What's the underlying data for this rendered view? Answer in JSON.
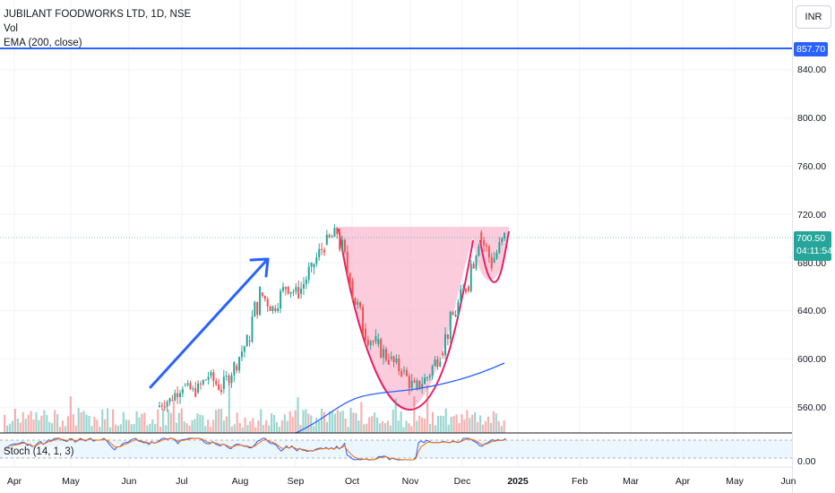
{
  "legend": {
    "symbol": "JUBILANT FOODWORKS LTD, 1D, NSE",
    "volume": "Vol",
    "ema": "EMA (200, close)"
  },
  "currency": "INR",
  "price_axis": {
    "ticks": [
      "840.00",
      "800.00",
      "760.00",
      "720.00",
      "680.00",
      "640.00",
      "600.00",
      "560.00"
    ],
    "ema_tag": "857.70",
    "last_price_tag": "700.50",
    "countdown_tag": "04:11:54"
  },
  "time_axis": {
    "labels": [
      "Apr",
      "May",
      "Jun",
      "Jul",
      "Aug",
      "Sep",
      "Oct",
      "Nov",
      "Dec",
      "2025",
      "Feb",
      "Mar",
      "Apr",
      "May",
      "Jun"
    ]
  },
  "stoch": {
    "label": "Stoch (14, 1, 3)",
    "zero_tick": "0.00"
  },
  "colors": {
    "up": "#26a69a",
    "down": "#ef5350",
    "ema": "#2962ff",
    "arrow": "#2962ff",
    "cup_fill": "#f8bbd0",
    "cup_line": "#e91e63",
    "ema_tag": "#2962ff",
    "last_price_tag": "#26a69a"
  },
  "chart_data": {
    "type": "candlestick",
    "ylim": [
      545,
      865
    ],
    "ema_200_last": 857.7,
    "last_close": 700.5,
    "candles": [
      {
        "date": "2024-06-25",
        "o": 560,
        "h": 572,
        "l": 556,
        "c": 566
      },
      {
        "date": "2024-07-02",
        "o": 566,
        "h": 582,
        "l": 560,
        "c": 578
      },
      {
        "date": "2024-07-09",
        "o": 578,
        "h": 585,
        "l": 568,
        "c": 572
      },
      {
        "date": "2024-07-16",
        "o": 572,
        "h": 590,
        "l": 566,
        "c": 586
      },
      {
        "date": "2024-07-23",
        "o": 586,
        "h": 592,
        "l": 570,
        "c": 575
      },
      {
        "date": "2024-07-30",
        "o": 575,
        "h": 598,
        "l": 571,
        "c": 594
      },
      {
        "date": "2024-08-06",
        "o": 594,
        "h": 620,
        "l": 588,
        "c": 615
      },
      {
        "date": "2024-08-13",
        "o": 615,
        "h": 660,
        "l": 610,
        "c": 655
      },
      {
        "date": "2024-08-20",
        "o": 655,
        "h": 662,
        "l": 635,
        "c": 642
      },
      {
        "date": "2024-08-27",
        "o": 642,
        "h": 668,
        "l": 638,
        "c": 660
      },
      {
        "date": "2024-09-03",
        "o": 660,
        "h": 672,
        "l": 650,
        "c": 654
      },
      {
        "date": "2024-09-10",
        "o": 654,
        "h": 680,
        "l": 645,
        "c": 676
      },
      {
        "date": "2024-09-17",
        "o": 676,
        "h": 700,
        "l": 670,
        "c": 695
      },
      {
        "date": "2024-09-24",
        "o": 695,
        "h": 715,
        "l": 690,
        "c": 705
      },
      {
        "date": "2024-10-01",
        "o": 705,
        "h": 708,
        "l": 660,
        "c": 665
      },
      {
        "date": "2024-10-08",
        "o": 665,
        "h": 670,
        "l": 620,
        "c": 625
      },
      {
        "date": "2024-10-15",
        "o": 625,
        "h": 640,
        "l": 605,
        "c": 612
      },
      {
        "date": "2024-10-22",
        "o": 612,
        "h": 625,
        "l": 595,
        "c": 600
      },
      {
        "date": "2024-10-29",
        "o": 600,
        "h": 612,
        "l": 585,
        "c": 590
      },
      {
        "date": "2024-11-05",
        "o": 590,
        "h": 600,
        "l": 570,
        "c": 575
      },
      {
        "date": "2024-11-12",
        "o": 575,
        "h": 590,
        "l": 565,
        "c": 585
      },
      {
        "date": "2024-11-19",
        "o": 585,
        "h": 610,
        "l": 580,
        "c": 605
      },
      {
        "date": "2024-11-26",
        "o": 605,
        "h": 640,
        "l": 600,
        "c": 635
      },
      {
        "date": "2024-12-03",
        "o": 635,
        "h": 665,
        "l": 630,
        "c": 660
      },
      {
        "date": "2024-12-10",
        "o": 660,
        "h": 713,
        "l": 655,
        "c": 705
      },
      {
        "date": "2024-12-17",
        "o": 705,
        "h": 708,
        "l": 670,
        "c": 680
      },
      {
        "date": "2024-12-24",
        "o": 680,
        "h": 705,
        "l": 672,
        "c": 700.5
      }
    ]
  }
}
